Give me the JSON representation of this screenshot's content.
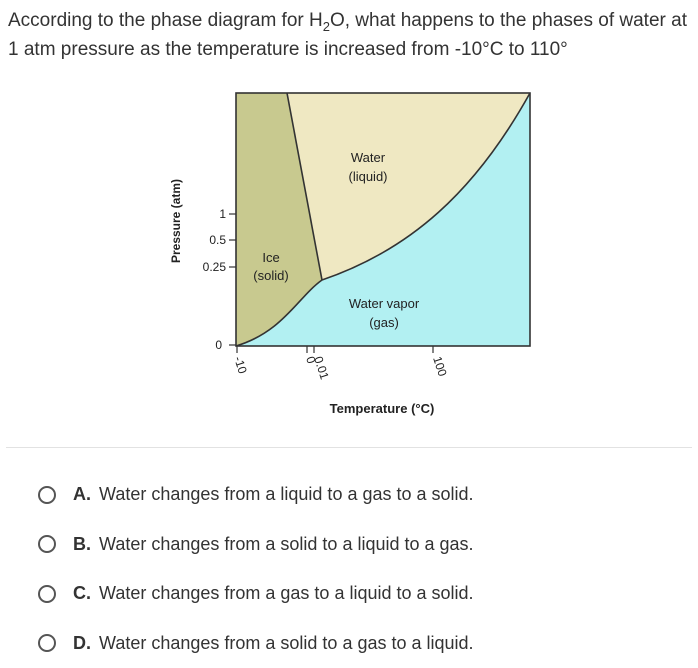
{
  "question": {
    "text_before": "According to the phase diagram for H",
    "sub": "2",
    "text_after": "O, what happens to the phases of water at 1 atm pressure as the temperature is increased from -10°C to 110°"
  },
  "diagram": {
    "ylabel": "Pressure (atm)",
    "xlabel": "Temperature (°C)",
    "y_ticks": [
      "1",
      "0.5",
      "0.25",
      "0"
    ],
    "x_ticks": [
      "-10",
      "0",
      "0.01",
      "100"
    ],
    "regions": {
      "solid": [
        "Ice",
        "(solid)"
      ],
      "liquid": [
        "Water",
        "(liquid)"
      ],
      "gas": [
        "Water vapor",
        "(gas)"
      ]
    },
    "colors": {
      "solid": "#c8c98f",
      "liquid": "#efe8c2",
      "gas": "#b2f0f2",
      "border": "#333333"
    }
  },
  "options": [
    {
      "letter": "A.",
      "text": "Water changes from a liquid to a gas to a solid."
    },
    {
      "letter": "B.",
      "text": "Water changes from a solid to a liquid to a gas."
    },
    {
      "letter": "C.",
      "text": "Water changes from a gas to a liquid to a solid."
    },
    {
      "letter": "D.",
      "text": "Water changes from a solid to a gas to a liquid."
    }
  ]
}
